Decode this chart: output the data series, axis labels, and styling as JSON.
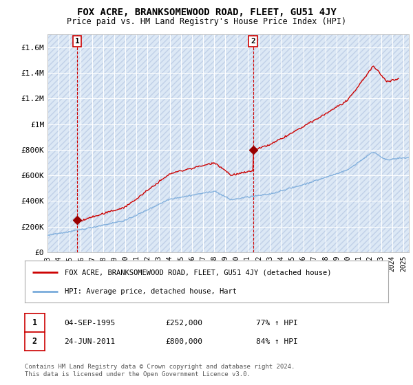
{
  "title": "FOX ACRE, BRANKSOMEWOOD ROAD, FLEET, GU51 4JY",
  "subtitle": "Price paid vs. HM Land Registry's House Price Index (HPI)",
  "ylim": [
    0,
    1700000
  ],
  "xlim_start": 1993.0,
  "xlim_end": 2025.5,
  "yticks": [
    0,
    200000,
    400000,
    600000,
    800000,
    1000000,
    1200000,
    1400000,
    1600000
  ],
  "ytick_labels": [
    "£0",
    "£200K",
    "£400K",
    "£600K",
    "£800K",
    "£1M",
    "£1.2M",
    "£1.4M",
    "£1.6M"
  ],
  "plot_bg_color": "#dce8f5",
  "grid_color": "#ffffff",
  "red_line_color": "#cc0000",
  "blue_line_color": "#7aabdb",
  "marker_color": "#990000",
  "annotation_box_color": "#cc0000",
  "sale1_year": 1995.67,
  "sale1_price": 252000,
  "sale1_label": "1",
  "sale1_date": "04-SEP-1995",
  "sale1_pct": "77% ↑ HPI",
  "sale2_year": 2011.48,
  "sale2_price": 800000,
  "sale2_label": "2",
  "sale2_date": "24-JUN-2011",
  "sale2_pct": "84% ↑ HPI",
  "legend_line1": "FOX ACRE, BRANKSOMEWOOD ROAD, FLEET, GU51 4JY (detached house)",
  "legend_line2": "HPI: Average price, detached house, Hart",
  "footer": "Contains HM Land Registry data © Crown copyright and database right 2024.\nThis data is licensed under the Open Government Licence v3.0.",
  "xtick_years": [
    1993,
    1994,
    1995,
    1996,
    1997,
    1998,
    1999,
    2000,
    2001,
    2002,
    2003,
    2004,
    2005,
    2006,
    2007,
    2008,
    2009,
    2010,
    2011,
    2012,
    2013,
    2014,
    2015,
    2016,
    2017,
    2018,
    2019,
    2020,
    2021,
    2022,
    2023,
    2024,
    2025
  ]
}
